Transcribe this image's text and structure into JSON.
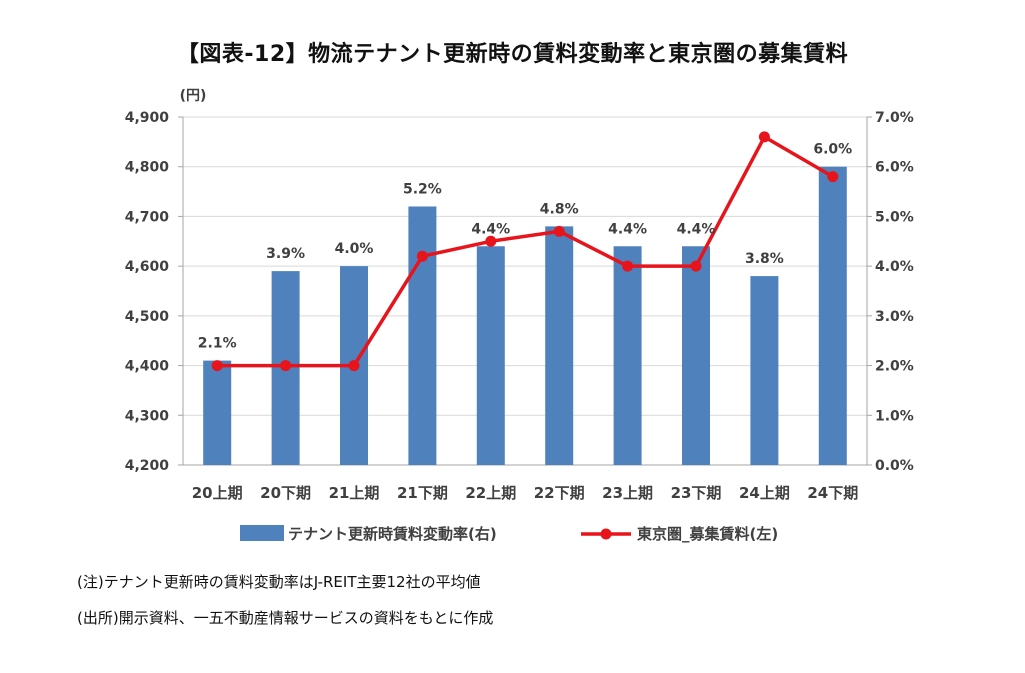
{
  "title": "【図表-12】物流テナント更新時の賃料変動率と東京圏の募集賃料",
  "notes": [
    "(注)テナント更新時の賃料変動率はJ-REIT主要12社の平均値",
    "(出所)開示資料、一五不動産情報サービスの資料をもとに作成"
  ],
  "chart_data": {
    "type": "bar",
    "categories": [
      "20上期",
      "20下期",
      "21上期",
      "21下期",
      "22上期",
      "22下期",
      "23上期",
      "23下期",
      "24上期",
      "24下期"
    ],
    "series": [
      {
        "name": "テナント更新時賃料変動率(右)",
        "type": "bar",
        "axis": "right",
        "values": [
          2.1,
          3.9,
          4.0,
          5.2,
          4.4,
          4.8,
          4.4,
          4.4,
          3.8,
          6.0
        ],
        "labels": [
          "2.1%",
          "3.9%",
          "4.0%",
          "5.2%",
          "4.4%",
          "4.8%",
          "4.4%",
          "4.4%",
          "3.8%",
          "6.0%"
        ],
        "color": "#4f81bd"
      },
      {
        "name": "東京圏_募集賃料(左)",
        "type": "line",
        "axis": "left",
        "values": [
          4400,
          4400,
          4400,
          4620,
          4650,
          4670,
          4600,
          4600,
          4860,
          4780
        ],
        "color": "#e8141b"
      }
    ],
    "y_left": {
      "unit_label": "(円)",
      "ylim": [
        4200,
        4900
      ],
      "ticks": [
        "4,200",
        "4,300",
        "4,400",
        "4,500",
        "4,600",
        "4,700",
        "4,800",
        "4,900"
      ]
    },
    "y_right": {
      "ylim": [
        0,
        7
      ],
      "ticks": [
        "0.0%",
        "1.0%",
        "2.0%",
        "3.0%",
        "4.0%",
        "5.0%",
        "6.0%",
        "7.0%"
      ]
    },
    "grid": true,
    "legend_position": "bottom"
  }
}
